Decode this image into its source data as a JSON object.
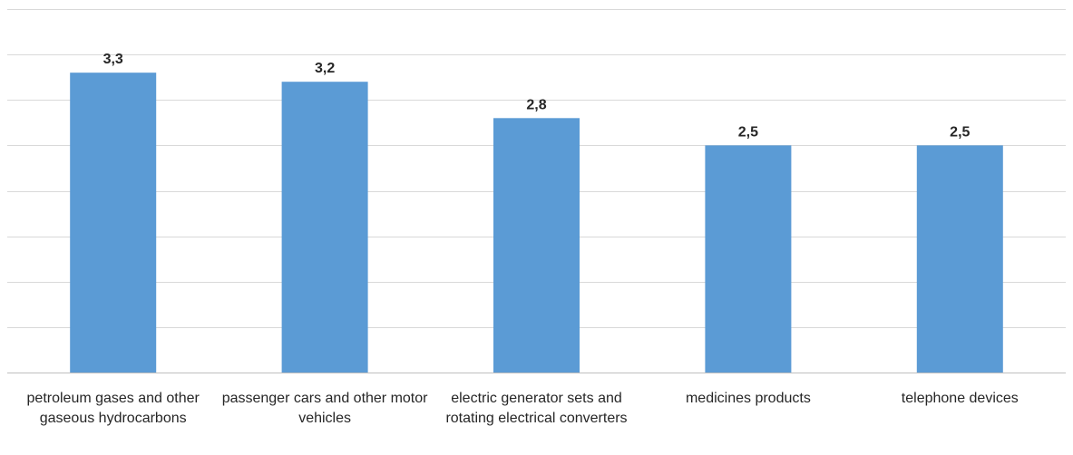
{
  "chart_data": {
    "type": "bar",
    "categories": [
      "petroleum gases and other gaseous hydrocarbons",
      "passenger cars and other motor vehicles",
      "electric generator sets and rotating electrical converters",
      "medicines products",
      "telephone devices"
    ],
    "values": [
      3.3,
      3.2,
      2.8,
      2.5,
      2.5
    ],
    "data_labels": [
      "3,3",
      "3,2",
      "2,8",
      "2,5",
      "2,5"
    ],
    "title": "",
    "xlabel": "",
    "ylabel": "",
    "ylim": [
      0,
      4
    ],
    "grid": true,
    "legend": "none",
    "colors": {
      "bar": "#5b9bd5",
      "grid": "#d9d9d9",
      "text": "#262626"
    }
  }
}
